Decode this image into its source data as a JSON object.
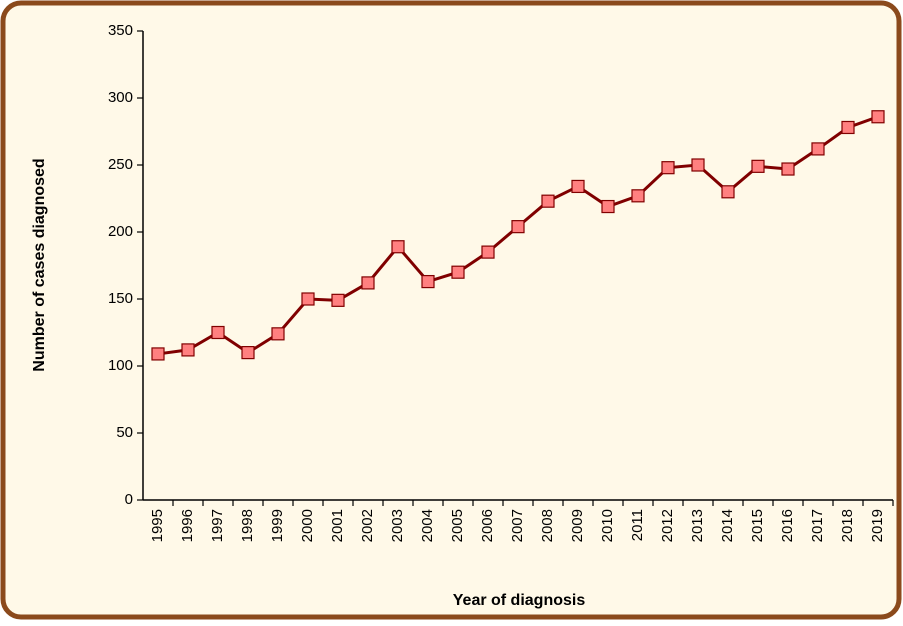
{
  "chart_data": {
    "type": "line",
    "x_label": "Year of diagnosis",
    "y_label": "Number of cases diagnosed",
    "categories": [
      "1995",
      "1996",
      "1997",
      "1998",
      "1999",
      "2000",
      "2001",
      "2002",
      "2003",
      "2004",
      "2005",
      "2006",
      "2007",
      "2008",
      "2009",
      "2010",
      "2011",
      "2012",
      "2013",
      "2014",
      "2015",
      "2016",
      "2017",
      "2018",
      "2019"
    ],
    "series": [
      {
        "name": "Cases",
        "color": "#800000",
        "marker_color": "#ff8080",
        "values": [
          109,
          112,
          125,
          110,
          124,
          150,
          149,
          162,
          189,
          163,
          170,
          185,
          204,
          223,
          234,
          219,
          227,
          248,
          250,
          230,
          249,
          247,
          262,
          278,
          286
        ]
      }
    ],
    "ylim": [
      0,
      350
    ],
    "yticks": [
      0,
      50,
      100,
      150,
      200,
      250,
      300,
      350
    ],
    "grid": false
  }
}
